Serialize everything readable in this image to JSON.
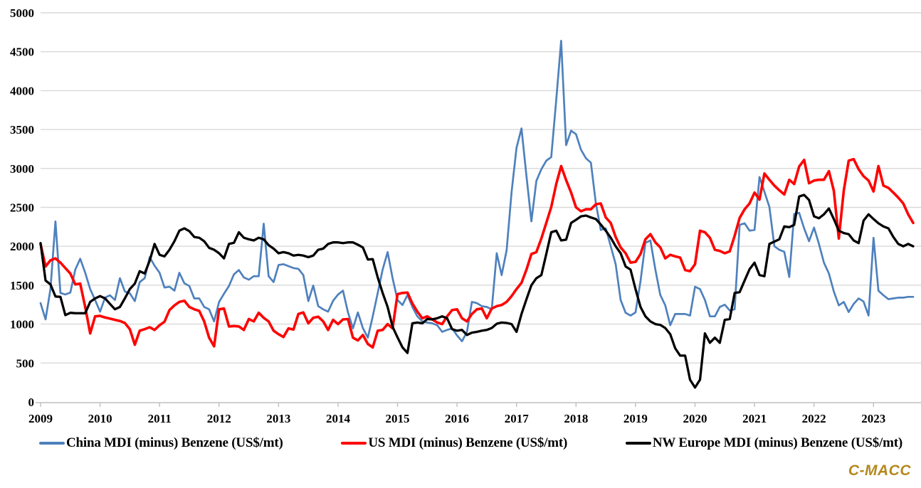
{
  "branding": {
    "logo_text": "C-MACC",
    "logo_color": "#B5881C"
  },
  "chart_data": {
    "type": "line",
    "title": "",
    "xlabel": "",
    "ylabel": "",
    "unit": "US$/mt",
    "x_start": "2009-01",
    "x_end": "2023-09",
    "x_frequency": "monthly",
    "x_tick_labels": [
      "2009",
      "2010",
      "2011",
      "2012",
      "2013",
      "2014",
      "2015",
      "2016",
      "2017",
      "2018",
      "2019",
      "2020",
      "2021",
      "2022",
      "2023"
    ],
    "y_ticks": [
      0,
      500,
      1000,
      1500,
      2000,
      2500,
      3000,
      3500,
      4000,
      4500,
      5000
    ],
    "ylim": [
      0,
      5000
    ],
    "grid": true,
    "gridline_color": "#D9D9D9",
    "axis_color": "#BFBFBF",
    "legend_position": "bottom",
    "series": [
      {
        "name": "China MDI (minus) Benzene (US$/mt)",
        "color": "#4E81BD",
        "stroke_width": 2.7,
        "values": [
          1270,
          1060,
          1450,
          2320,
          1400,
          1380,
          1405,
          1700,
          1840,
          1660,
          1450,
          1310,
          1160,
          1340,
          1370,
          1310,
          1590,
          1420,
          1395,
          1295,
          1540,
          1590,
          1860,
          1750,
          1660,
          1470,
          1480,
          1430,
          1660,
          1525,
          1490,
          1330,
          1330,
          1220,
          1190,
          1035,
          1285,
          1390,
          1490,
          1640,
          1695,
          1600,
          1570,
          1615,
          1615,
          2290,
          1615,
          1540,
          1760,
          1770,
          1745,
          1720,
          1710,
          1630,
          1295,
          1495,
          1230,
          1190,
          1160,
          1300,
          1380,
          1430,
          1150,
          945,
          1150,
          950,
          825,
          1100,
          1400,
          1700,
          1925,
          1590,
          1310,
          1245,
          1375,
          1220,
          1100,
          1035,
          1020,
          1010,
          985,
          900,
          925,
          945,
          855,
          780,
          900,
          1285,
          1270,
          1230,
          1220,
          1190,
          1910,
          1630,
          1950,
          2700,
          3265,
          3515,
          2900,
          2320,
          2840,
          2990,
          3100,
          3145,
          3880,
          4640,
          3300,
          3485,
          3440,
          3240,
          3130,
          3075,
          2550,
          2210,
          2230,
          2000,
          1770,
          1310,
          1145,
          1110,
          1150,
          1550,
          2045,
          2075,
          1700,
          1375,
          1240,
          985,
          1130,
          1130,
          1130,
          1110,
          1480,
          1450,
          1310,
          1100,
          1100,
          1220,
          1250,
          1175,
          1190,
          2275,
          2295,
          2200,
          2210,
          2890,
          2700,
          2505,
          2000,
          1955,
          1930,
          1605,
          2415,
          2430,
          2230,
          2065,
          2240,
          2030,
          1790,
          1650,
          1420,
          1240,
          1285,
          1155,
          1260,
          1330,
          1290,
          1110,
          2110,
          1430,
          1370,
          1320,
          1330,
          1340,
          1340,
          1350,
          1350
        ]
      },
      {
        "name": "US MDI (minus) Benzene (US$/mt)",
        "color": "#FF0000",
        "stroke_width": 3.6,
        "values": [
          2030,
          1740,
          1820,
          1845,
          1790,
          1720,
          1650,
          1510,
          1520,
          1220,
          880,
          1100,
          1105,
          1085,
          1070,
          1055,
          1040,
          1015,
          935,
          735,
          915,
          935,
          960,
          925,
          985,
          1030,
          1180,
          1240,
          1285,
          1300,
          1220,
          1190,
          1170,
          1035,
          825,
          715,
          1190,
          1200,
          970,
          975,
          970,
          925,
          1065,
          1035,
          1145,
          1080,
          1035,
          915,
          870,
          835,
          945,
          930,
          1130,
          1150,
          1010,
          1080,
          1095,
          1035,
          925,
          1055,
          1000,
          1060,
          1065,
          825,
          790,
          860,
          745,
          700,
          915,
          925,
          1000,
          945,
          1385,
          1400,
          1405,
          1265,
          1160,
          1075,
          1100,
          1060,
          1020,
          1000,
          1100,
          1180,
          1190,
          1075,
          1035,
          1130,
          1190,
          1200,
          1075,
          1200,
          1230,
          1245,
          1285,
          1360,
          1450,
          1530,
          1700,
          1900,
          1925,
          2100,
          2300,
          2505,
          2800,
          3030,
          2850,
          2690,
          2500,
          2450,
          2475,
          2475,
          2540,
          2550,
          2370,
          2300,
          2120,
          1985,
          1910,
          1790,
          1800,
          1900,
          2090,
          2155,
          2050,
          1985,
          1845,
          1890,
          1870,
          1855,
          1695,
          1680,
          1770,
          2200,
          2180,
          2110,
          1955,
          1940,
          1910,
          1935,
          2135,
          2365,
          2475,
          2550,
          2690,
          2600,
          2935,
          2855,
          2780,
          2720,
          2665,
          2855,
          2800,
          3025,
          3110,
          2810,
          2845,
          2855,
          2855,
          2965,
          2715,
          2100,
          2715,
          3100,
          3120,
          2990,
          2900,
          2845,
          2705,
          3030,
          2780,
          2750,
          2690,
          2625,
          2550,
          2410,
          2300
        ]
      },
      {
        "name": "NW Europe MDI (minus) Benzene (US$/mt)",
        "color": "#000000",
        "stroke_width": 3.3,
        "values": [
          2040,
          1560,
          1510,
          1355,
          1350,
          1115,
          1145,
          1140,
          1140,
          1140,
          1285,
          1330,
          1360,
          1330,
          1260,
          1190,
          1220,
          1330,
          1450,
          1520,
          1680,
          1650,
          1815,
          2030,
          1890,
          1870,
          1955,
          2065,
          2200,
          2230,
          2195,
          2120,
          2110,
          2065,
          1980,
          1955,
          1910,
          1845,
          2030,
          2045,
          2180,
          2110,
          2090,
          2075,
          2110,
          2090,
          2015,
          1970,
          1910,
          1925,
          1910,
          1880,
          1890,
          1880,
          1860,
          1880,
          1955,
          1970,
          2030,
          2050,
          2050,
          2040,
          2050,
          2050,
          2020,
          1985,
          1830,
          1835,
          1600,
          1400,
          1220,
          965,
          830,
          700,
          630,
          1010,
          1020,
          1010,
          1065,
          1060,
          1075,
          1100,
          1075,
          935,
          915,
          925,
          860,
          890,
          900,
          915,
          925,
          950,
          1005,
          1020,
          1015,
          1000,
          900,
          1130,
          1320,
          1500,
          1590,
          1630,
          1900,
          2180,
          2200,
          2075,
          2085,
          2300,
          2340,
          2385,
          2395,
          2370,
          2350,
          2280,
          2200,
          2110,
          2000,
          1910,
          1740,
          1700,
          1450,
          1220,
          1100,
          1035,
          1000,
          990,
          950,
          870,
          690,
          595,
          595,
          285,
          185,
          285,
          880,
          760,
          825,
          760,
          1055,
          1065,
          1400,
          1410,
          1560,
          1705,
          1790,
          1630,
          1615,
          2030,
          2060,
          2090,
          2255,
          2245,
          2275,
          2640,
          2660,
          2595,
          2385,
          2360,
          2410,
          2485,
          2350,
          2200,
          2170,
          2155,
          2075,
          2040,
          2330,
          2410,
          2350,
          2295,
          2255,
          2230,
          2120,
          2030,
          2000,
          2030,
          2000
        ]
      }
    ]
  }
}
